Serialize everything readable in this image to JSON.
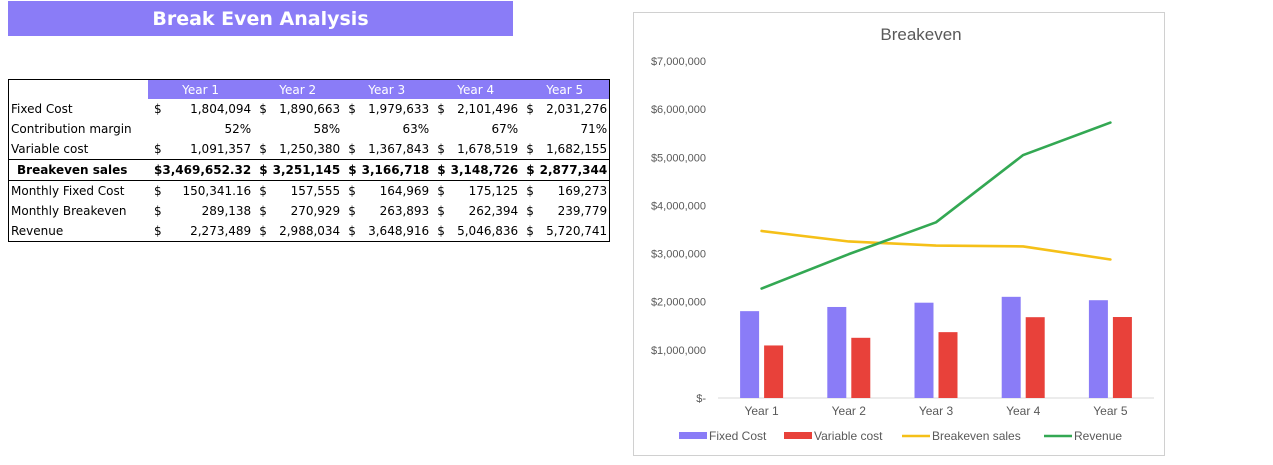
{
  "sheet": {
    "title": "Break Even Analysis",
    "colors": {
      "accent": "#8a7cf7"
    },
    "years": [
      "Year 1",
      "Year 2",
      "Year 3",
      "Year 4",
      "Year 5"
    ],
    "rows": [
      {
        "label": "Fixed Cost",
        "currency": true,
        "values": [
          "1,804,094",
          "1,890,663",
          "1,979,633",
          "2,101,496",
          "2,031,276"
        ]
      },
      {
        "label": "Contribution margin",
        "currency": false,
        "values": [
          "52%",
          "58%",
          "63%",
          "67%",
          "71%"
        ]
      },
      {
        "label": "Variable cost",
        "currency": true,
        "values": [
          "1,091,357",
          "1,250,380",
          "1,367,843",
          "1,678,519",
          "1,682,155"
        ]
      },
      {
        "label": "Breakeven sales",
        "currency": true,
        "bold": true,
        "values": [
          "3,469,652.32",
          "3,251,145",
          "3,166,718",
          "3,148,726",
          "2,877,344"
        ]
      },
      {
        "label": "Monthly Fixed Cost",
        "currency": true,
        "values": [
          "150,341.16",
          "157,555",
          "164,969",
          "175,125",
          "169,273"
        ]
      },
      {
        "label": "Monthly Breakeven",
        "currency": true,
        "values": [
          "289,138",
          "270,929",
          "263,893",
          "262,394",
          "239,779"
        ]
      },
      {
        "label": "Revenue",
        "currency": true,
        "values": [
          "2,273,489",
          "2,988,034",
          "3,648,916",
          "5,046,836",
          "5,720,741"
        ]
      }
    ],
    "currency_symbol": "$"
  },
  "chart_data": {
    "type": "bar",
    "title": "Breakeven",
    "categories": [
      "Year 1",
      "Year 2",
      "Year 3",
      "Year 4",
      "Year 5"
    ],
    "ylim": [
      0,
      7000000
    ],
    "yticks": [
      0,
      1000000,
      2000000,
      3000000,
      4000000,
      5000000,
      6000000,
      7000000
    ],
    "ytick_labels": [
      "$-",
      "$1,000,000",
      "$2,000,000",
      "$3,000,000",
      "$4,000,000",
      "$5,000,000",
      "$6,000,000",
      "$7,000,000"
    ],
    "grid": false,
    "legend_position": "bottom",
    "series": [
      {
        "name": "Fixed Cost",
        "kind": "bar",
        "color": "#8a7cf7",
        "values": [
          1804094,
          1890663,
          1979633,
          2101496,
          2031276
        ]
      },
      {
        "name": "Variable cost",
        "kind": "bar",
        "color": "#e8413a",
        "values": [
          1091357,
          1250380,
          1367843,
          1678519,
          1682155
        ]
      },
      {
        "name": "Breakeven sales",
        "kind": "line",
        "color": "#f5c018",
        "values": [
          3469652.32,
          3251145,
          3166718,
          3148726,
          2877344
        ]
      },
      {
        "name": "Revenue",
        "kind": "line",
        "color": "#33a853",
        "values": [
          2273489,
          2988034,
          3648916,
          5046836,
          5720741
        ]
      }
    ]
  }
}
